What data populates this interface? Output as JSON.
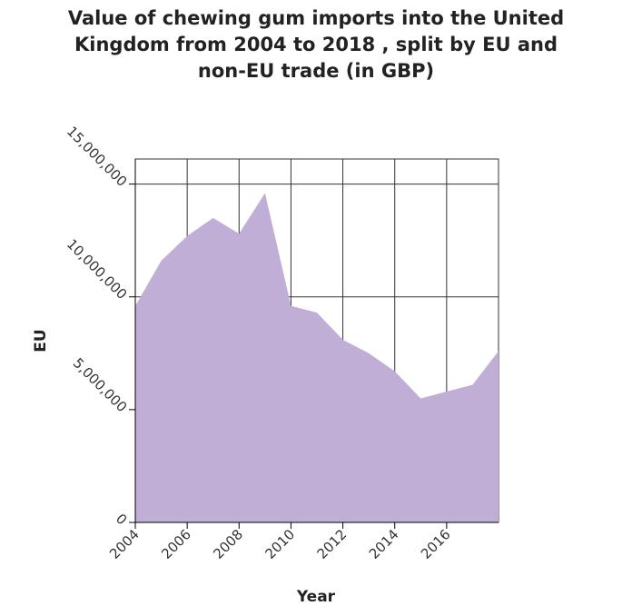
{
  "chart_data": {
    "type": "area",
    "title": "Value of chewing gum imports into the United Kingdom from 2004 to 2018 , split by EU and non-EU trade (in GBP)",
    "title_lines": [
      "Value of chewing gum imports into the United",
      "Kingdom from 2004 to 2018 , split by EU and",
      "non-EU trade (in GBP)"
    ],
    "xlabel": "Year",
    "ylabel": "EU",
    "xlim": [
      2004,
      2018
    ],
    "ylim": [
      0,
      15000000
    ],
    "x_ticks": [
      2004,
      2006,
      2008,
      2010,
      2012,
      2014,
      2016
    ],
    "x_tick_labels": [
      "2004",
      "2006",
      "2008",
      "2010",
      "2012",
      "2014",
      "2016"
    ],
    "y_ticks": [
      0,
      5000000,
      10000000,
      15000000
    ],
    "y_tick_labels": [
      "0",
      "5,000,000",
      "10,000,000",
      "15,000,000"
    ],
    "grid": true,
    "fill_color": "#c0aed6",
    "series": [
      {
        "x": [
          2004,
          2005,
          2006,
          2007,
          2008,
          2009,
          2010,
          2011,
          2012,
          2013,
          2014,
          2015,
          2016,
          2017,
          2018
        ],
        "values": [
          9600000,
          11600000,
          12700000,
          13500000,
          12800000,
          14600000,
          9600000,
          9300000,
          8100000,
          7500000,
          6700000,
          5500000,
          5800000,
          6100000,
          7600000
        ]
      }
    ]
  }
}
